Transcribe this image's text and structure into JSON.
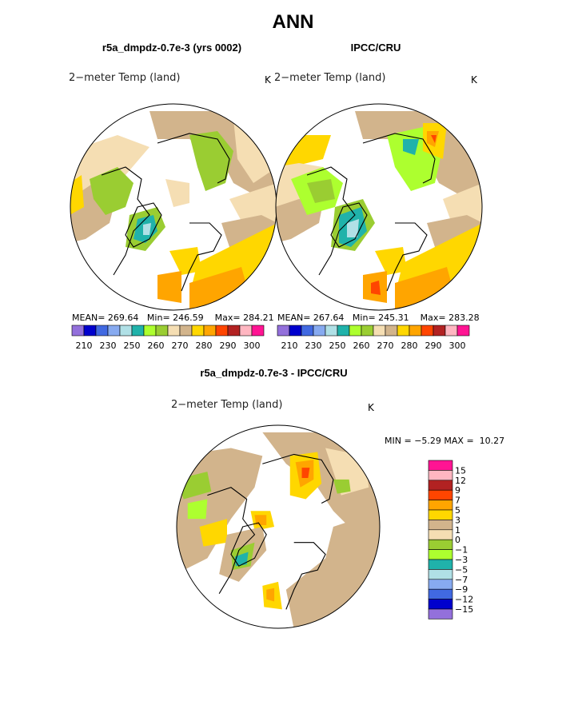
{
  "figure_title": "ANN",
  "colors": {
    "c01": "#9370db",
    "c02": "#0000cd",
    "c03": "#4169e1",
    "c04": "#87aaf0",
    "c05": "#b0e0e6",
    "c06": "#20b2aa",
    "c07": "#adff2f",
    "c08": "#9acd32",
    "c09": "#f5deb3",
    "c10": "#d2b48c",
    "c11": "#ffd700",
    "c12": "#ffa500",
    "c13": "#ff4500",
    "c14": "#b22222",
    "c15": "#ffb6c1",
    "c16": "#ff1493"
  },
  "chart_data": [
    {
      "type": "heatmap",
      "projection": "north polar stereographic",
      "title": "r5a_dmpdz-0.7e-3 (yrs 0002)",
      "field": "2−meter Temp (land)",
      "units": "K",
      "stats": {
        "mean_label": "MEAN=",
        "mean": "269.64",
        "min_label": "Min=",
        "min": "246.59",
        "max_label": "Max=",
        "max": "284.21"
      },
      "colorbar_ticks": [
        "210",
        "230",
        "250",
        "260",
        "270",
        "280",
        "290",
        "300"
      ]
    },
    {
      "type": "heatmap",
      "projection": "north polar stereographic",
      "title": "IPCC/CRU",
      "field": "2−meter Temp (land)",
      "units": "K",
      "stats": {
        "mean_label": "MEAN=",
        "mean": "267.64",
        "min_label": "Min=",
        "min": "245.31",
        "max_label": "Max=",
        "max": "283.28"
      },
      "colorbar_ticks": [
        "210",
        "230",
        "250",
        "260",
        "270",
        "280",
        "290",
        "300"
      ]
    },
    {
      "type": "heatmap",
      "projection": "north polar stereographic",
      "title": "r5a_dmpdz-0.7e-3 - IPCC/CRU",
      "field": "2−meter Temp (land)",
      "units": "K",
      "stats": {
        "min_label": "MIN =",
        "min": "−5.29",
        "max_label": "MAX =",
        "max": "10.27"
      },
      "colorbar_labels": [
        "15",
        "12",
        "9",
        "7",
        "5",
        "3",
        "1",
        "0",
        "−1",
        "−3",
        "−5",
        "−7",
        "−9",
        "−12",
        "−15"
      ]
    }
  ]
}
